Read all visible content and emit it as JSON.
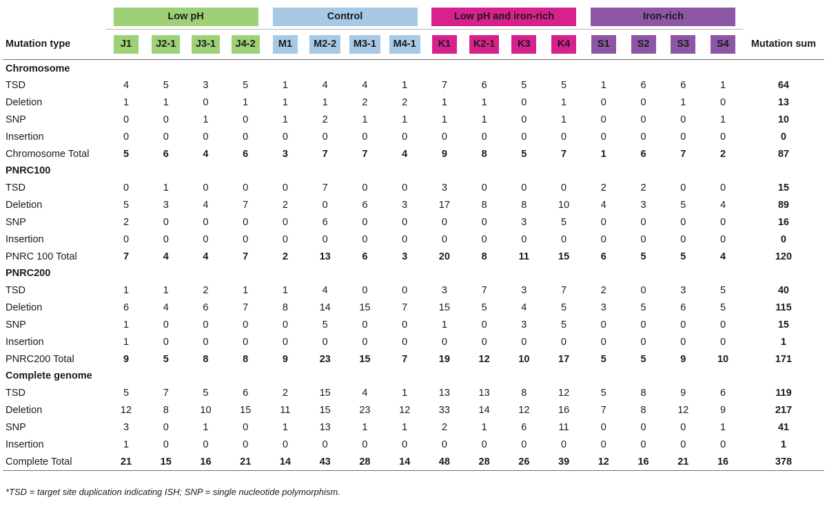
{
  "groups": [
    {
      "label": "Low pH",
      "color": "#9ed177"
    },
    {
      "label": "Control",
      "color": "#a8c9e6"
    },
    {
      "label": "Low pH and iron-rich",
      "color": "#d9218d"
    },
    {
      "label": "Iron-rich",
      "color": "#8e57a5"
    }
  ],
  "header": {
    "mutation_type": "Mutation type",
    "mutation_sum": "Mutation sum",
    "columns": [
      "J1",
      "J2-1",
      "J3-1",
      "J4-2",
      "M1",
      "M2-2",
      "M3-1",
      "M4-1",
      "K1",
      "K2-1",
      "K3",
      "K4",
      "S1",
      "S2",
      "S3",
      "S4"
    ]
  },
  "sections": [
    {
      "title": "Chromosome",
      "rows": [
        {
          "label": "TSD",
          "values": [
            "4",
            "5",
            "3",
            "5",
            "1",
            "4",
            "4",
            "1",
            "7",
            "6",
            "5",
            "5",
            "1",
            "6",
            "6",
            "1"
          ],
          "sum": "64"
        },
        {
          "label": "Deletion",
          "values": [
            "1",
            "1",
            "0",
            "1",
            "1",
            "1",
            "2",
            "2",
            "1",
            "1",
            "0",
            "1",
            "0",
            "0",
            "1",
            "0"
          ],
          "sum": "13"
        },
        {
          "label": "SNP",
          "values": [
            "0",
            "0",
            "1",
            "0",
            "1",
            "2",
            "1",
            "1",
            "1",
            "1",
            "0",
            "1",
            "0",
            "0",
            "0",
            "1"
          ],
          "sum": "10"
        },
        {
          "label": "Insertion",
          "values": [
            "0",
            "0",
            "0",
            "0",
            "0",
            "0",
            "0",
            "0",
            "0",
            "0",
            "0",
            "0",
            "0",
            "0",
            "0",
            "0"
          ],
          "sum": "0"
        }
      ],
      "total": {
        "label": "Chromosome Total",
        "values": [
          "5",
          "6",
          "4",
          "6",
          "3",
          "7",
          "7",
          "4",
          "9",
          "8",
          "5",
          "7",
          "1",
          "6",
          "7",
          "2"
        ],
        "sum": "87"
      }
    },
    {
      "title": "PNRC100",
      "rows": [
        {
          "label": "TSD",
          "values": [
            "0",
            "1",
            "0",
            "0",
            "0",
            "7",
            "0",
            "0",
            "3",
            "0",
            "0",
            "0",
            "2",
            "2",
            "0",
            "0"
          ],
          "sum": "15"
        },
        {
          "label": "Deletion",
          "values": [
            "5",
            "3",
            "4",
            "7",
            "2",
            "0",
            "6",
            "3",
            "17",
            "8",
            "8",
            "10",
            "4",
            "3",
            "5",
            "4"
          ],
          "sum": "89"
        },
        {
          "label": "SNP",
          "values": [
            "2",
            "0",
            "0",
            "0",
            "0",
            "6",
            "0",
            "0",
            "0",
            "0",
            "3",
            "5",
            "0",
            "0",
            "0",
            "0"
          ],
          "sum": "16"
        },
        {
          "label": "Insertion",
          "values": [
            "0",
            "0",
            "0",
            "0",
            "0",
            "0",
            "0",
            "0",
            "0",
            "0",
            "0",
            "0",
            "0",
            "0",
            "0",
            "0"
          ],
          "sum": "0"
        }
      ],
      "total": {
        "label": "PNRC 100 Total",
        "values": [
          "7",
          "4",
          "4",
          "7",
          "2",
          "13",
          "6",
          "3",
          "20",
          "8",
          "11",
          "15",
          "6",
          "5",
          "5",
          "4"
        ],
        "sum": "120"
      }
    },
    {
      "title": "PNRC200",
      "rows": [
        {
          "label": "TSD",
          "values": [
            "1",
            "1",
            "2",
            "1",
            "1",
            "4",
            "0",
            "0",
            "3",
            "7",
            "3",
            "7",
            "2",
            "0",
            "3",
            "5"
          ],
          "sum": "40"
        },
        {
          "label": "Deletion",
          "values": [
            "6",
            "4",
            "6",
            "7",
            "8",
            "14",
            "15",
            "7",
            "15",
            "5",
            "4",
            "5",
            "3",
            "5",
            "6",
            "5"
          ],
          "sum": "115"
        },
        {
          "label": "SNP",
          "values": [
            "1",
            "0",
            "0",
            "0",
            "0",
            "5",
            "0",
            "0",
            "1",
            "0",
            "3",
            "5",
            "0",
            "0",
            "0",
            "0"
          ],
          "sum": "15"
        },
        {
          "label": "Insertion",
          "values": [
            "1",
            "0",
            "0",
            "0",
            "0",
            "0",
            "0",
            "0",
            "0",
            "0",
            "0",
            "0",
            "0",
            "0",
            "0",
            "0"
          ],
          "sum": "1"
        }
      ],
      "total": {
        "label": "PNRC200 Total",
        "values": [
          "9",
          "5",
          "8",
          "8",
          "9",
          "23",
          "15",
          "7",
          "19",
          "12",
          "10",
          "17",
          "5",
          "5",
          "9",
          "10"
        ],
        "sum": "171"
      }
    },
    {
      "title": "Complete genome",
      "rows": [
        {
          "label": "TSD",
          "values": [
            "5",
            "7",
            "5",
            "6",
            "2",
            "15",
            "4",
            "1",
            "13",
            "13",
            "8",
            "12",
            "5",
            "8",
            "9",
            "6"
          ],
          "sum": "119"
        },
        {
          "label": "Deletion",
          "values": [
            "12",
            "8",
            "10",
            "15",
            "11",
            "15",
            "23",
            "12",
            "33",
            "14",
            "12",
            "16",
            "7",
            "8",
            "12",
            "9"
          ],
          "sum": "217"
        },
        {
          "label": "SNP",
          "values": [
            "3",
            "0",
            "1",
            "0",
            "1",
            "13",
            "1",
            "1",
            "2",
            "1",
            "6",
            "11",
            "0",
            "0",
            "0",
            "1"
          ],
          "sum": "41"
        },
        {
          "label": "Insertion",
          "values": [
            "1",
            "0",
            "0",
            "0",
            "0",
            "0",
            "0",
            "0",
            "0",
            "0",
            "0",
            "0",
            "0",
            "0",
            "0",
            "0"
          ],
          "sum": "1"
        }
      ],
      "total": {
        "label": "Complete Total",
        "values": [
          "21",
          "15",
          "16",
          "21",
          "14",
          "43",
          "28",
          "14",
          "48",
          "28",
          "26",
          "39",
          "12",
          "16",
          "21",
          "16"
        ],
        "sum": "378"
      }
    }
  ],
  "footnote": "*TSD = target site duplication indicating ISH; SNP = single nucleotide polymorphism."
}
